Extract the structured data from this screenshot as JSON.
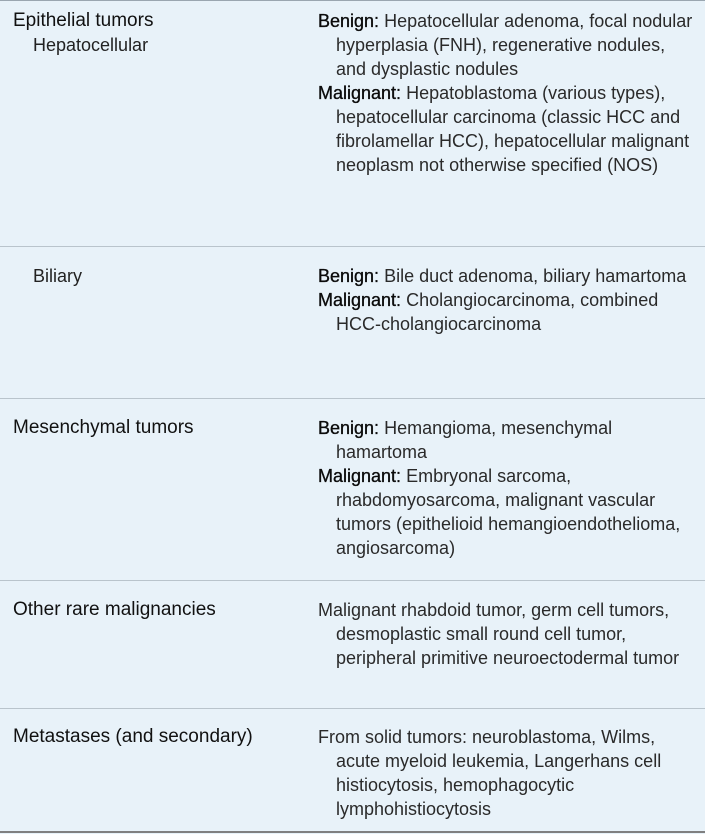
{
  "rows": [
    {
      "category": "Epithelial tumors",
      "subcategory": "Hepatocellular",
      "benign_label": "Benign:",
      "benign_text": "Hepatocellular adenoma, focal nodular hyperplasia (FNH), regenerative nodules, and dysplastic nodules",
      "malignant_label": "Malignant:",
      "malignant_text": "Hepatoblastoma (various types), hepatocellular carcinoma (classic HCC and fibrolamellar HCC), hepatocellular malignant neoplasm not otherwise specified (NOS)"
    },
    {
      "subcategory": "Biliary",
      "benign_label": "Benign:",
      "benign_text": "Bile duct adenoma, biliary hamartoma",
      "malignant_label": "Malignant:",
      "malignant_text": "Cholangiocarcinoma, combined HCC-cholangiocarcinoma"
    },
    {
      "category": "Mesenchymal tumors",
      "benign_label": "Benign:",
      "benign_text": "Hemangioma, mesenchymal hamartoma",
      "malignant_label": "Malignant:",
      "malignant_text": "Embryonal sarcoma, rhabdomyosarcoma, malignant vascular tumors (epithelioid hemangioendothelioma, angiosarcoma)"
    },
    {
      "category": "Other rare malignancies",
      "text": "Malignant rhabdoid tumor, germ cell tumors, desmoplastic small round cell tumor, peripheral primitive neuroectodermal tumor"
    },
    {
      "category": "Metastases (and secondary)",
      "text": "From solid tumors: neuroblastoma, Wilms, acute myeloid leukemia, Langerhans cell histiocytosis, hemophagocytic lymphohistiocytosis"
    }
  ]
}
